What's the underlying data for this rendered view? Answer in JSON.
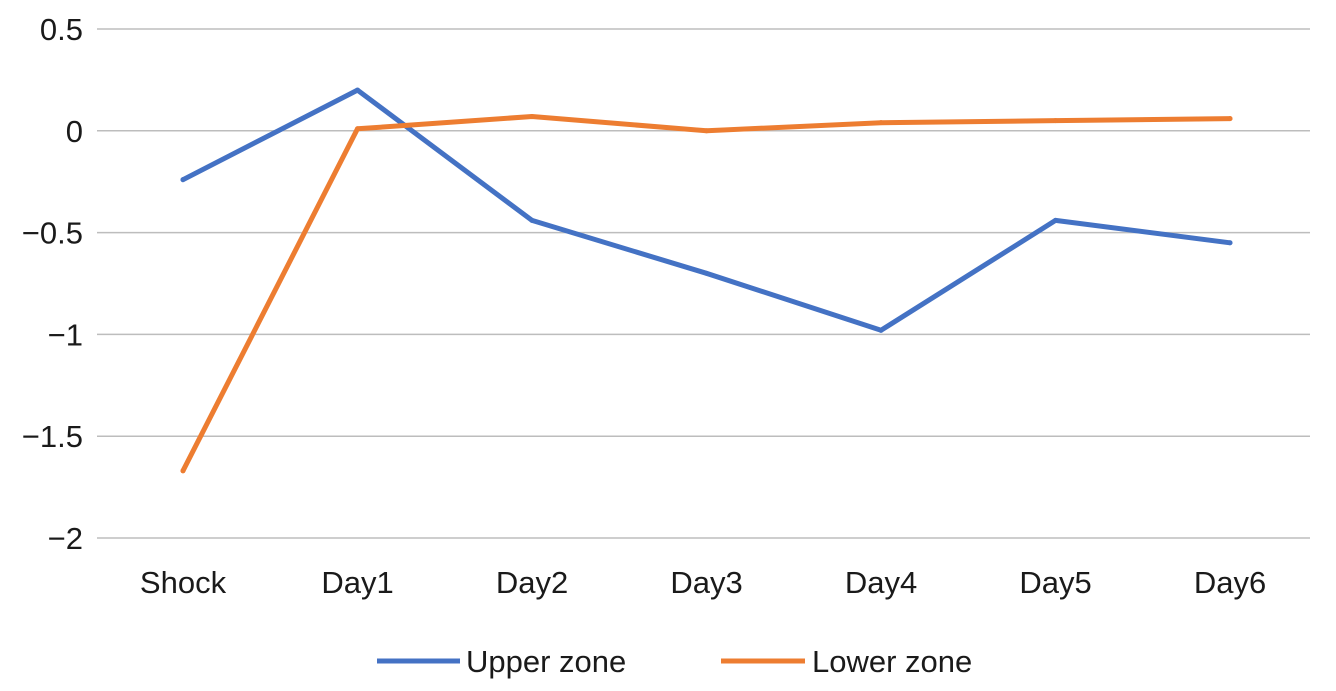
{
  "chart_data": {
    "type": "line",
    "title": "",
    "xlabel": "",
    "ylabel": "",
    "categories": [
      "Shock",
      "Day1",
      "Day2",
      "Day3",
      "Day4",
      "Day5",
      "Day6"
    ],
    "ylim": [
      -2,
      0.5
    ],
    "yticks": [
      0.5,
      0,
      -0.5,
      -1,
      -1.5,
      -2
    ],
    "ytick_labels": [
      "0.5",
      "0",
      "−0.5",
      "−1",
      "−1.5",
      "−2"
    ],
    "grid": true,
    "legend_position": "bottom",
    "series": [
      {
        "name": "Upper zone",
        "color": "#4472C4",
        "values": [
          -0.24,
          0.2,
          -0.44,
          -0.7,
          -0.98,
          -0.44,
          -0.55
        ]
      },
      {
        "name": "Lower zone",
        "color": "#ED7D31",
        "values": [
          -1.67,
          0.01,
          0.07,
          0.0,
          0.04,
          0.05,
          0.06
        ]
      }
    ]
  }
}
